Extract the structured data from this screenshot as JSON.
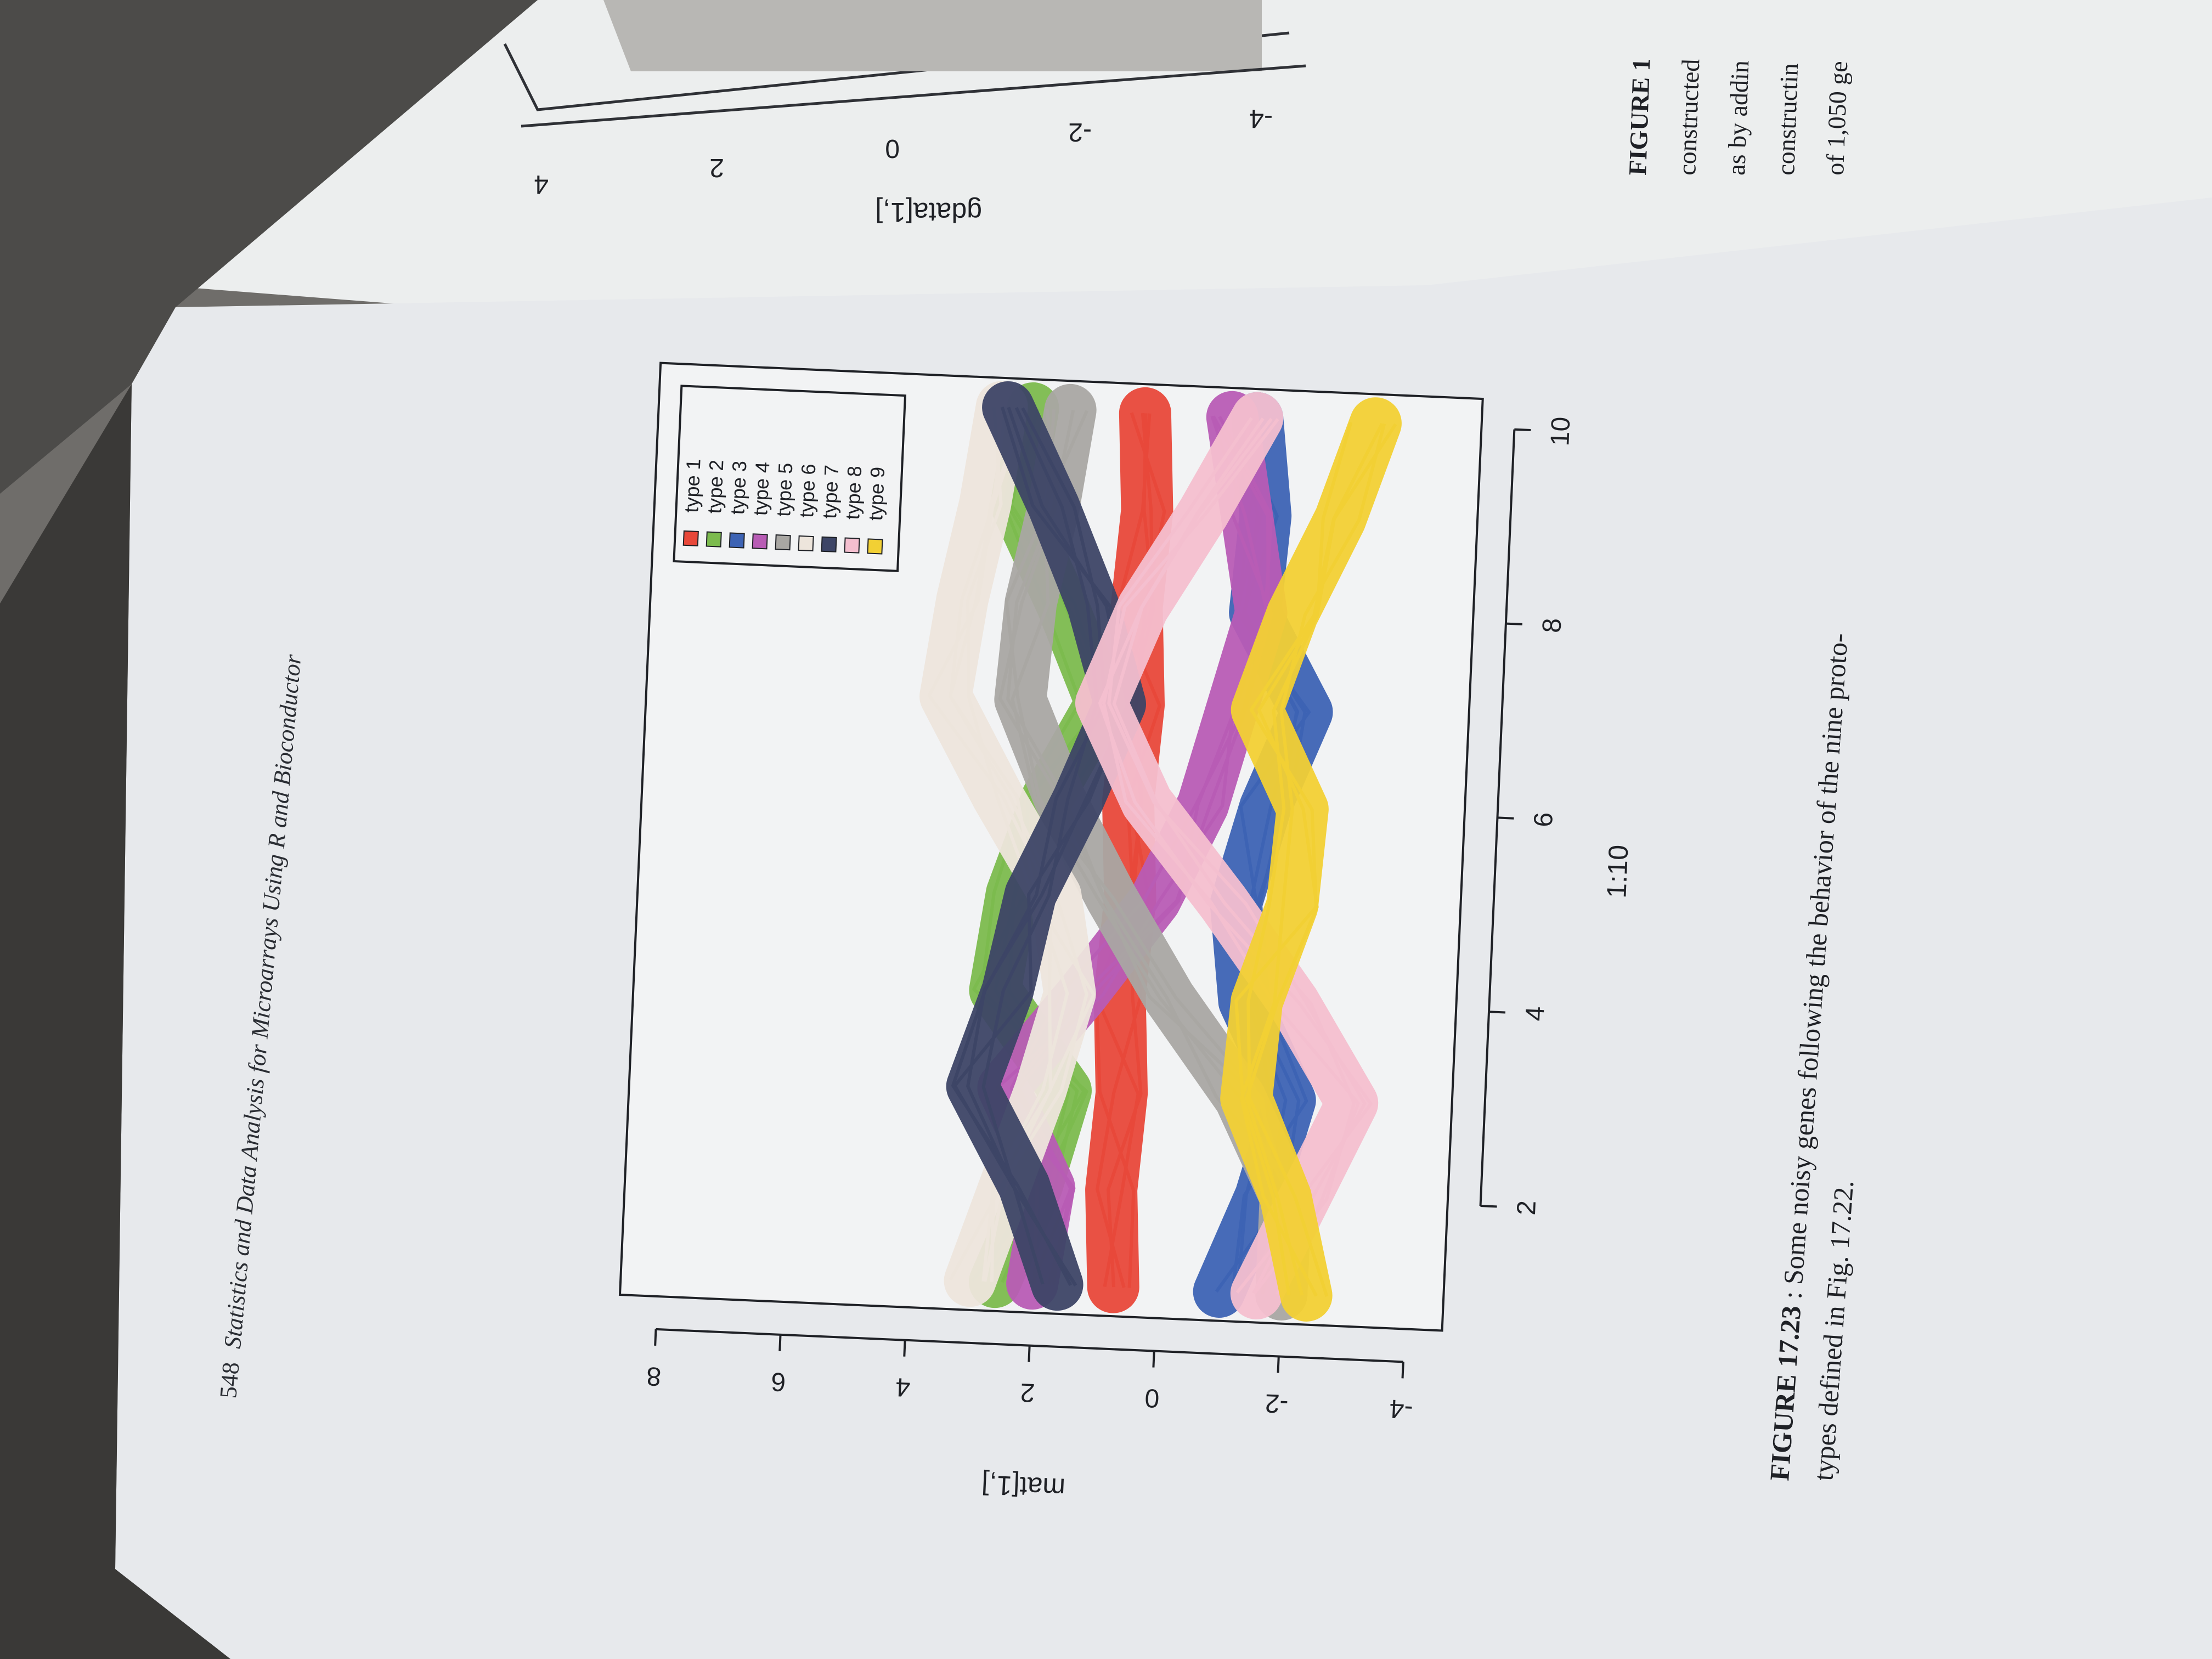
{
  "header": {
    "page_number": "548",
    "running_title": "Statistics and Data Analysis for Microarrays Using R and Bioconductor"
  },
  "chart_data": {
    "type": "line",
    "xlabel": "1:10",
    "ylabel": "mat[1,]",
    "xlim": [
      0.7,
      10.3
    ],
    "ylim": [
      -4.6,
      8.6
    ],
    "x_ticks": [
      "2",
      "4",
      "6",
      "8",
      "10"
    ],
    "y_ticks": [
      "-4",
      "-2",
      "0",
      "2",
      "4",
      "6",
      "8"
    ],
    "x": [
      1,
      2,
      3,
      4,
      5,
      6,
      7,
      8,
      9,
      10
    ],
    "series": [
      {
        "name": "type 1",
        "color": "#e8483a",
        "values": [
          0.7,
          0.8,
          0.7,
          0.8,
          0.7,
          0.8,
          0.7,
          0.8,
          0.7,
          0.8
        ]
      },
      {
        "name": "type 2",
        "color": "#7cbb4e",
        "values": [
          2.6,
          2.0,
          1.6,
          2.8,
          2.6,
          2.1,
          1.3,
          2.0,
          2.8,
          2.6
        ]
      },
      {
        "name": "type 3",
        "color": "#3d63b4",
        "values": [
          -1.0,
          -1.6,
          -2.0,
          -1.2,
          -1.0,
          -1.4,
          -2.0,
          -1.1,
          -1.2,
          -1.0
        ]
      },
      {
        "name": "type 4",
        "color": "#b85cb5",
        "values": [
          2.0,
          1.8,
          2.6,
          1.4,
          0.3,
          -0.4,
          -0.8,
          -1.2,
          -0.9,
          -0.6
        ]
      },
      {
        "name": "type 5",
        "color": "#a9a7a3",
        "values": [
          -2.0,
          -2.0,
          -1.2,
          0.0,
          1.0,
          1.9,
          2.6,
          2.5,
          2.2,
          2.0
        ]
      },
      {
        "name": "type 6",
        "color": "#ede5dc",
        "values": [
          3.0,
          2.5,
          2.0,
          1.6,
          1.9,
          2.9,
          3.8,
          3.6,
          3.3,
          3.1
        ]
      },
      {
        "name": "type 7",
        "color": "#3d4566",
        "values": [
          1.6,
          2.2,
          3.1,
          2.6,
          2.3,
          1.6,
          1.0,
          1.5,
          2.2,
          3.0
        ]
      },
      {
        "name": "type 8",
        "color": "#f4bfcf",
        "values": [
          -1.6,
          -2.3,
          -3.0,
          -2.0,
          -0.8,
          0.5,
          1.3,
          0.7,
          -0.2,
          -1.0
        ]
      },
      {
        "name": "type 9",
        "color": "#f2d034",
        "values": [
          -2.4,
          -2.0,
          -1.3,
          -1.4,
          -1.9,
          -2.0,
          -1.2,
          -1.7,
          -2.4,
          -2.9
        ]
      }
    ]
  },
  "caption": {
    "label": "FIGURE 17.23",
    "text_line1": ": Some noisy genes following the behavior of the nine proto-",
    "text_line2": "types defined in Fig. 17.22."
  },
  "right_page": {
    "ylabel": "gdata[1,]",
    "y_ticks": [
      "4",
      "2",
      "0",
      "-2",
      "-4"
    ],
    "caption_label": "FIGURE 1",
    "lines": [
      "constructed",
      "as by addin",
      "constructin",
      "of 1,050 ge"
    ]
  }
}
